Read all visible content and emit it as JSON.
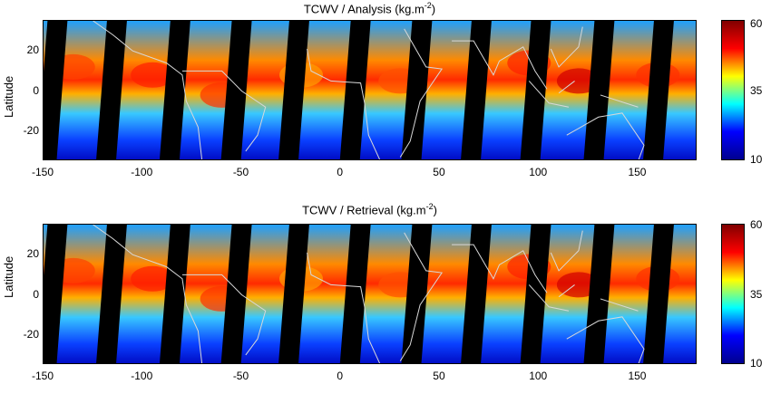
{
  "panels": [
    {
      "title_main": "TCWV / Analysis (kg.m",
      "title_sup": "-2",
      "title_end": ")",
      "ylabel": "Latitude",
      "colorbar_labels": [
        "60",
        "35",
        "10"
      ]
    },
    {
      "title_main": "TCWV / Retrieval (kg.m",
      "title_sup": "-2",
      "title_end": ")",
      "ylabel": "Latitude",
      "colorbar_labels": [
        "60",
        "35",
        "10"
      ]
    }
  ],
  "axes": {
    "x_ticks": [
      "-150",
      "-100",
      "-50",
      "0",
      "50",
      "100",
      "150"
    ],
    "x_values": [
      -150,
      -100,
      -50,
      0,
      50,
      100,
      150
    ],
    "y_ticks": [
      "20",
      "0",
      "-20"
    ],
    "y_values": [
      20,
      0,
      -20
    ],
    "xlim": [
      -150,
      180
    ],
    "ylim": [
      -35,
      35
    ]
  },
  "colormap": {
    "name": "jet",
    "range": [
      10,
      60
    ],
    "stops": [
      "#00008f",
      "#0000ff",
      "#00ffff",
      "#ffff00",
      "#ff0000",
      "#800000"
    ]
  }
}
